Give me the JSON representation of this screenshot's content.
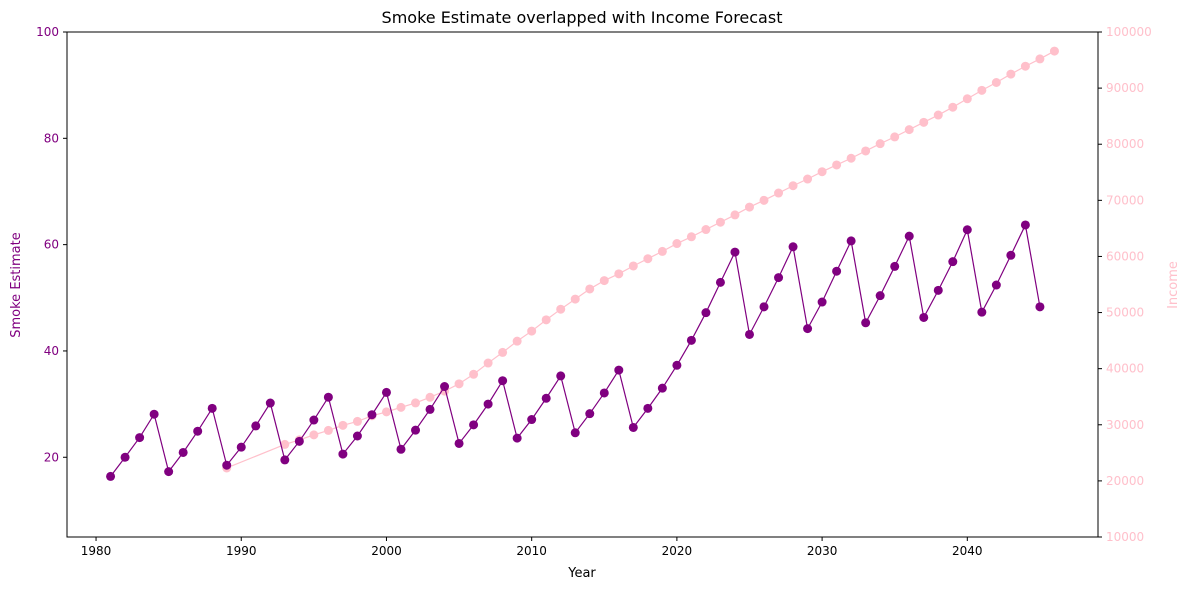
{
  "chart_data": {
    "type": "line",
    "title": "Smoke Estimate overlapped with Income Forecast",
    "xlabel": "Year",
    "ylabel": "Smoke Estimate",
    "y2label": "Income",
    "xlim": [
      1978,
      2049
    ],
    "ylim": [
      5,
      100
    ],
    "y2lim": [
      10000,
      100000
    ],
    "xticks": [
      1980,
      1990,
      2000,
      2010,
      2020,
      2030,
      2040
    ],
    "yticks": [
      20,
      40,
      60,
      80,
      100
    ],
    "y2ticks": [
      10000,
      20000,
      30000,
      40000,
      50000,
      60000,
      70000,
      80000,
      90000,
      100000
    ],
    "grid": false,
    "series": [
      {
        "axis": "left",
        "color": "#800080",
        "x": [
          1981,
          1982,
          1983,
          1984,
          1985,
          1986,
          1987,
          1988,
          1989,
          1990,
          1991,
          1992,
          1993,
          1994,
          1995,
          1996,
          1997,
          1998,
          1999,
          2000,
          2001,
          2002,
          2003,
          2004,
          2005,
          2006,
          2007,
          2008,
          2009,
          2010,
          2011,
          2012,
          2013,
          2014,
          2015,
          2016,
          2017,
          2018,
          2019,
          2020,
          2021,
          2022,
          2023,
          2024,
          2025,
          2026,
          2027,
          2028,
          2029,
          2030,
          2031,
          2032,
          2033,
          2034,
          2035,
          2036,
          2037,
          2038,
          2039,
          2040,
          2041,
          2042,
          2043,
          2044,
          2045
        ],
        "values": [
          16.4,
          20.0,
          23.7,
          28.1,
          17.3,
          20.9,
          24.9,
          29.2,
          18.5,
          21.9,
          25.9,
          30.2,
          19.5,
          23.0,
          27.0,
          31.3,
          20.6,
          24.0,
          28.0,
          32.2,
          21.5,
          25.1,
          29.0,
          33.3,
          22.6,
          26.1,
          30.0,
          34.4,
          23.6,
          27.1,
          31.1,
          35.3,
          24.6,
          28.2,
          32.1,
          36.4,
          25.6,
          29.2,
          33.0,
          37.3,
          42.0,
          47.2,
          52.9,
          58.6,
          43.1,
          48.3,
          53.8,
          59.6,
          44.2,
          49.2,
          55.0,
          60.7,
          45.3,
          50.4,
          55.9,
          61.6,
          46.3,
          51.4,
          56.8,
          62.8,
          47.3,
          52.4,
          58.0,
          63.7,
          48.3
        ]
      },
      {
        "axis": "right",
        "color": "#ffc0cb",
        "x": [
          1989,
          1993,
          1994,
          1995,
          1996,
          1997,
          1998,
          1999,
          2000,
          2001,
          2002,
          2003,
          2004,
          2005,
          2006,
          2007,
          2008,
          2009,
          2010,
          2011,
          2012,
          2013,
          2014,
          2015,
          2016,
          2017,
          2018,
          2019,
          2020,
          2021,
          2022,
          2023,
          2024,
          2025,
          2026,
          2027,
          2028,
          2029,
          2030,
          2031,
          2032,
          2033,
          2034,
          2035,
          2036,
          2037,
          2038,
          2039,
          2040,
          2041,
          2042,
          2043,
          2044,
          2045,
          2046
        ],
        "values": [
          22300,
          26500,
          27300,
          28200,
          29000,
          29900,
          30600,
          31600,
          32300,
          33100,
          33900,
          34900,
          36000,
          37300,
          39000,
          41000,
          42900,
          44900,
          46700,
          48700,
          50600,
          52400,
          54200,
          55700,
          56900,
          58300,
          59600,
          60900,
          62300,
          63500,
          64800,
          66100,
          67400,
          68800,
          70000,
          71300,
          72600,
          73800,
          75100,
          76300,
          77500,
          78800,
          80100,
          81300,
          82600,
          83900,
          85200,
          86600,
          88100,
          89600,
          91000,
          92500,
          93900,
          95200,
          96600
        ]
      }
    ]
  }
}
